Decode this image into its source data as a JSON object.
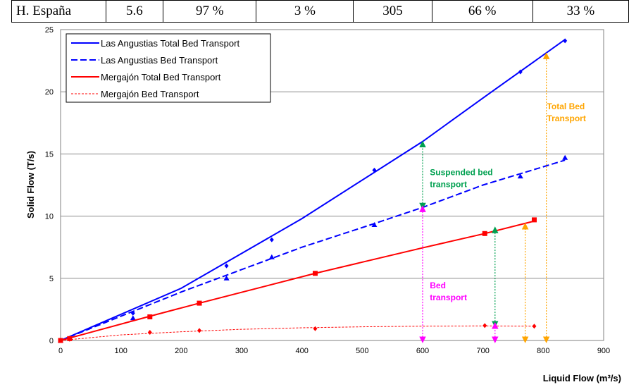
{
  "table": {
    "cells": [
      "H. España",
      "5.6",
      "97 %",
      "3 %",
      "305",
      "66 %",
      "33 %"
    ]
  },
  "chart_data": {
    "type": "scatter",
    "xlabel": "Liquid Flow (m³/s)",
    "ylabel": "Solid  Flow (T/s)",
    "xlim": [
      0,
      900
    ],
    "ylim": [
      0,
      25
    ],
    "x_ticks": [
      0,
      100,
      200,
      300,
      400,
      500,
      600,
      700,
      800,
      900
    ],
    "y_ticks": [
      0,
      5,
      10,
      15,
      20,
      25
    ],
    "grid": "horizontal",
    "legend_position": "top-left",
    "series": [
      {
        "name": "Las Angustias Total Bed Transport",
        "color": "#0000ff",
        "marker": "diamond",
        "line_style": "solid",
        "points": [
          [
            0,
            0.0
          ],
          [
            120,
            2.2
          ],
          [
            275,
            6.0
          ],
          [
            350,
            8.1
          ],
          [
            520,
            13.7
          ],
          [
            762,
            21.6
          ],
          [
            836,
            24.1
          ]
        ],
        "fit": [
          [
            0,
            0.0
          ],
          [
            200,
            4.2
          ],
          [
            400,
            9.8
          ],
          [
            600,
            16.0
          ],
          [
            700,
            19.5
          ],
          [
            836,
            24.2
          ]
        ]
      },
      {
        "name": "Las Angustias Bed Transport",
        "color": "#0000ff",
        "marker": "triangle",
        "line_style": "dashed",
        "points": [
          [
            0,
            0.0
          ],
          [
            120,
            1.8
          ],
          [
            275,
            5.0
          ],
          [
            350,
            6.7
          ],
          [
            520,
            9.3
          ],
          [
            762,
            13.2
          ],
          [
            836,
            14.7
          ]
        ],
        "fit": [
          [
            0,
            0.0
          ],
          [
            200,
            3.9
          ],
          [
            400,
            7.5
          ],
          [
            520,
            9.4
          ],
          [
            600,
            10.7
          ],
          [
            700,
            12.5
          ],
          [
            836,
            14.5
          ]
        ]
      },
      {
        "name": "Mergajón Total Bed Transport",
        "color": "#ff0000",
        "marker": "square",
        "line_style": "solid",
        "points": [
          [
            0,
            0.0
          ],
          [
            15,
            0.15
          ],
          [
            148,
            1.9
          ],
          [
            230,
            3.0
          ],
          [
            422,
            5.4
          ],
          [
            703,
            8.6
          ],
          [
            785,
            9.7
          ]
        ],
        "fit": [
          [
            0,
            0.0
          ],
          [
            148,
            1.95
          ],
          [
            230,
            3.0
          ],
          [
            422,
            5.4
          ],
          [
            600,
            7.45
          ],
          [
            703,
            8.6
          ],
          [
            785,
            9.6
          ]
        ]
      },
      {
        "name": "Mergajón Bed Transport",
        "color": "#ff0000",
        "marker": "diamond",
        "line_style": "dotted",
        "points": [
          [
            0,
            0.0
          ],
          [
            15,
            0.1
          ],
          [
            148,
            0.65
          ],
          [
            230,
            0.8
          ],
          [
            422,
            0.95
          ],
          [
            703,
            1.2
          ],
          [
            785,
            1.15
          ]
        ],
        "fit": [
          [
            0,
            0.0
          ],
          [
            100,
            0.45
          ],
          [
            200,
            0.7
          ],
          [
            300,
            0.9
          ],
          [
            400,
            1.02
          ],
          [
            500,
            1.1
          ],
          [
            600,
            1.15
          ],
          [
            700,
            1.17
          ],
          [
            785,
            1.15
          ]
        ]
      }
    ],
    "annotations": [
      {
        "text": [
          "Suspended bed",
          "transport"
        ],
        "color": "#00a050",
        "x": 612,
        "y": 13.3,
        "arrow": {
          "x": 600,
          "y1": 10.8,
          "y2": 15.8
        }
      },
      {
        "text": [
          "Bed",
          "transport"
        ],
        "color": "#ff00ff",
        "x": 612,
        "y": 4.2,
        "arrow": {
          "x": 600,
          "y1": 0.05,
          "y2": 10.6
        }
      },
      {
        "text": [
          "Total Bed",
          "Transport"
        ],
        "color": "#ffa500",
        "x": 806,
        "y": 18.6,
        "arrow": {
          "x": 805,
          "y1": 0.05,
          "y2": 22.9
        }
      }
    ],
    "extra_arrows": [
      {
        "color": "#00a050",
        "x": 720,
        "y1": 1.3,
        "y2": 8.9
      },
      {
        "color": "#ff00ff",
        "x": 720,
        "y1": 0.05,
        "y2": 1.2
      },
      {
        "color": "#ffa500",
        "x": 770,
        "y1": 0.05,
        "y2": 9.2
      }
    ]
  }
}
